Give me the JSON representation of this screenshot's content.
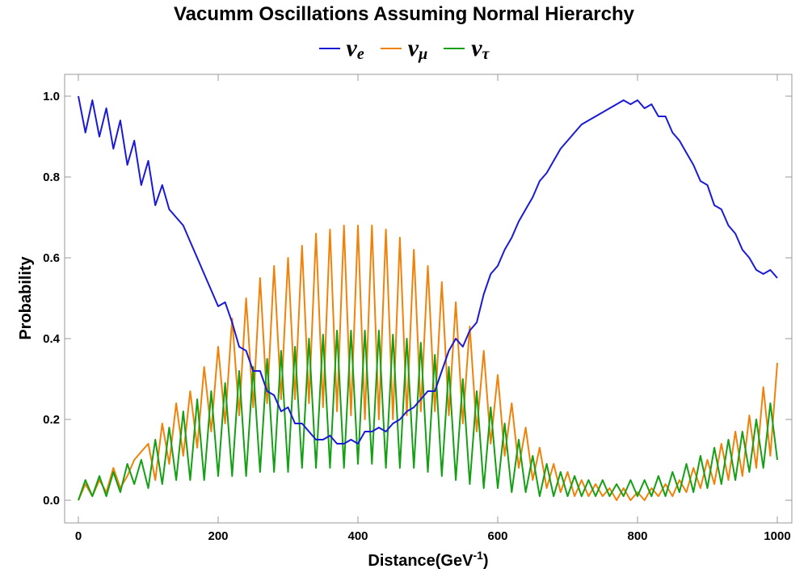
{
  "chart_data": {
    "type": "line",
    "title": "Vacumm Oscillations Assuming Normal Hierarchy",
    "xlabel": "Distance(GeV",
    "xlabel_superscript": "-1",
    "xlabel_suffix": ")",
    "ylabel": "Probability",
    "xlim": [
      0,
      1000
    ],
    "ylim": [
      0,
      1.0
    ],
    "xticks": [
      0,
      200,
      400,
      600,
      800,
      1000
    ],
    "yticks": [
      0.0,
      0.2,
      0.4,
      0.6,
      0.8,
      1.0
    ],
    "xtick_labels": [
      "0",
      "200",
      "400",
      "600",
      "800",
      "1000"
    ],
    "ytick_labels": [
      "0.0",
      "0.2",
      "0.4",
      "0.6",
      "0.8",
      "1.0"
    ],
    "grid": false,
    "legend_position": "top-center",
    "x": [
      0,
      10,
      20,
      30,
      40,
      50,
      60,
      70,
      80,
      90,
      100,
      110,
      120,
      130,
      140,
      150,
      160,
      170,
      180,
      190,
      200,
      210,
      220,
      230,
      240,
      250,
      260,
      270,
      280,
      290,
      300,
      310,
      320,
      330,
      340,
      350,
      360,
      370,
      380,
      390,
      400,
      410,
      420,
      430,
      440,
      450,
      460,
      470,
      480,
      490,
      500,
      510,
      520,
      530,
      540,
      550,
      560,
      570,
      580,
      590,
      600,
      610,
      620,
      630,
      640,
      650,
      660,
      670,
      680,
      690,
      700,
      710,
      720,
      730,
      740,
      750,
      760,
      770,
      780,
      790,
      800,
      810,
      820,
      830,
      840,
      850,
      860,
      870,
      880,
      890,
      900,
      910,
      920,
      930,
      940,
      950,
      960,
      970,
      980,
      990,
      1000
    ],
    "series": [
      {
        "name": "νe",
        "label_base": "ν",
        "label_sub": "e",
        "color": "#1a1ad6",
        "values": [
          1.0,
          0.91,
          0.99,
          0.9,
          0.97,
          0.87,
          0.94,
          0.83,
          0.89,
          0.78,
          0.84,
          0.73,
          0.78,
          0.72,
          0.7,
          0.68,
          0.64,
          0.6,
          0.56,
          0.52,
          0.48,
          0.49,
          0.44,
          0.38,
          0.37,
          0.32,
          0.32,
          0.27,
          0.26,
          0.22,
          0.23,
          0.19,
          0.19,
          0.17,
          0.15,
          0.15,
          0.16,
          0.14,
          0.14,
          0.15,
          0.14,
          0.17,
          0.17,
          0.18,
          0.17,
          0.19,
          0.2,
          0.22,
          0.23,
          0.25,
          0.27,
          0.27,
          0.32,
          0.37,
          0.4,
          0.38,
          0.42,
          0.44,
          0.51,
          0.56,
          0.58,
          0.62,
          0.65,
          0.69,
          0.72,
          0.75,
          0.79,
          0.81,
          0.84,
          0.87,
          0.89,
          0.91,
          0.93,
          0.94,
          0.95,
          0.96,
          0.97,
          0.98,
          0.99,
          0.98,
          0.99,
          0.97,
          0.98,
          0.95,
          0.95,
          0.91,
          0.89,
          0.86,
          0.83,
          0.79,
          0.78,
          0.73,
          0.72,
          0.68,
          0.66,
          0.62,
          0.6,
          0.57,
          0.56,
          0.57,
          0.55
        ]
      },
      {
        "name": "νμ",
        "label_base": "ν",
        "label_sub": "μ",
        "color": "#f0820a",
        "values": [
          0.0,
          0.04,
          0.01,
          0.05,
          0.02,
          0.08,
          0.03,
          0.06,
          0.1,
          0.12,
          0.14,
          0.05,
          0.19,
          0.09,
          0.24,
          0.11,
          0.27,
          0.13,
          0.33,
          0.17,
          0.38,
          0.19,
          0.45,
          0.21,
          0.5,
          0.23,
          0.55,
          0.24,
          0.58,
          0.25,
          0.6,
          0.25,
          0.63,
          0.24,
          0.66,
          0.23,
          0.67,
          0.22,
          0.68,
          0.21,
          0.68,
          0.2,
          0.68,
          0.2,
          0.67,
          0.2,
          0.65,
          0.21,
          0.62,
          0.22,
          0.58,
          0.22,
          0.54,
          0.21,
          0.49,
          0.19,
          0.43,
          0.17,
          0.37,
          0.14,
          0.31,
          0.11,
          0.24,
          0.08,
          0.18,
          0.05,
          0.13,
          0.03,
          0.09,
          0.02,
          0.07,
          0.01,
          0.05,
          0.01,
          0.04,
          0.01,
          0.03,
          0.0,
          0.03,
          0.0,
          0.02,
          0.0,
          0.03,
          0.01,
          0.04,
          0.01,
          0.05,
          0.02,
          0.08,
          0.03,
          0.1,
          0.04,
          0.14,
          0.05,
          0.17,
          0.06,
          0.21,
          0.08,
          0.28,
          0.11,
          0.34
        ]
      },
      {
        "name": "ντ",
        "label_base": "ν",
        "label_sub": "τ",
        "color": "#14a014",
        "values": [
          0.0,
          0.05,
          0.01,
          0.06,
          0.01,
          0.07,
          0.02,
          0.09,
          0.04,
          0.1,
          0.03,
          0.15,
          0.04,
          0.18,
          0.05,
          0.22,
          0.05,
          0.25,
          0.05,
          0.27,
          0.06,
          0.29,
          0.06,
          0.32,
          0.06,
          0.33,
          0.07,
          0.35,
          0.07,
          0.37,
          0.07,
          0.38,
          0.08,
          0.4,
          0.08,
          0.41,
          0.08,
          0.42,
          0.08,
          0.42,
          0.09,
          0.42,
          0.09,
          0.42,
          0.08,
          0.41,
          0.08,
          0.4,
          0.08,
          0.39,
          0.07,
          0.36,
          0.06,
          0.33,
          0.05,
          0.3,
          0.04,
          0.27,
          0.03,
          0.23,
          0.03,
          0.19,
          0.02,
          0.15,
          0.02,
          0.11,
          0.01,
          0.09,
          0.01,
          0.07,
          0.01,
          0.06,
          0.01,
          0.05,
          0.01,
          0.05,
          0.01,
          0.04,
          0.01,
          0.05,
          0.01,
          0.05,
          0.01,
          0.06,
          0.01,
          0.07,
          0.02,
          0.09,
          0.02,
          0.11,
          0.03,
          0.13,
          0.04,
          0.15,
          0.05,
          0.17,
          0.07,
          0.2,
          0.08,
          0.24,
          0.1
        ]
      }
    ]
  }
}
